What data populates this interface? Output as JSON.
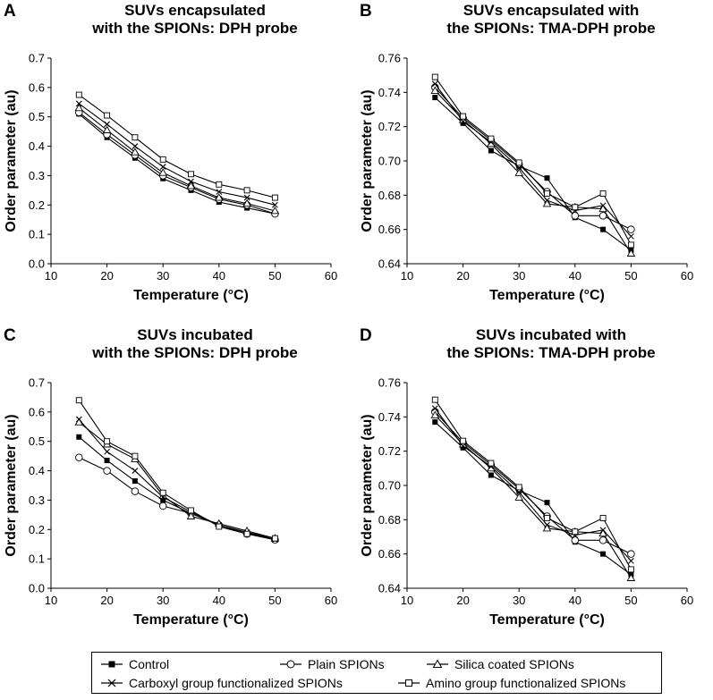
{
  "colors": {
    "axis": "#000000",
    "line": "#000000",
    "marker_fill_open": "#ffffff",
    "marker_fill_solid": "#000000"
  },
  "legend": {
    "items": [
      {
        "label": "Control",
        "marker": "square-filled-icon"
      },
      {
        "label": "Plain SPIONs",
        "marker": "circle-open-icon"
      },
      {
        "label": "Silica coated SPIONs",
        "marker": "triangle-open-icon"
      },
      {
        "label": "Carboxyl group functionalized SPIONs",
        "marker": "cross-icon"
      },
      {
        "label": "Amino group functionalized SPIONs",
        "marker": "square-open-icon"
      }
    ]
  },
  "chart_data": [
    {
      "type": "line",
      "panel": "A",
      "title_lines": [
        "SUVs encapsulated",
        "with the SPIONs: DPH probe"
      ],
      "xlabel": "Temperature (°C)",
      "ylabel": "Order parameter (au)",
      "xlim": [
        10,
        60
      ],
      "ylim": [
        0,
        0.7
      ],
      "xticks": [
        10,
        20,
        30,
        40,
        50,
        60
      ],
      "yticks": [
        0,
        0.1,
        0.2,
        0.3,
        0.4,
        0.5,
        0.6,
        0.7
      ],
      "ytick_labels": [
        "0.0",
        "0.1",
        "0.2",
        "0.3",
        "0.4",
        "0.5",
        "0.6",
        "0.7"
      ],
      "x": [
        15,
        20,
        25,
        30,
        35,
        40,
        45,
        50
      ],
      "series": [
        {
          "name": "Control",
          "values": [
            0.51,
            0.43,
            0.36,
            0.29,
            0.25,
            0.21,
            0.19,
            0.17
          ]
        },
        {
          "name": "Plain SPIONs",
          "values": [
            0.515,
            0.44,
            0.37,
            0.3,
            0.26,
            0.22,
            0.2,
            0.17
          ]
        },
        {
          "name": "Silica coated SPIONs",
          "values": [
            0.53,
            0.455,
            0.38,
            0.31,
            0.265,
            0.225,
            0.205,
            0.18
          ]
        },
        {
          "name": "Carboxyl group functionalized SPIONs",
          "values": [
            0.545,
            0.475,
            0.4,
            0.33,
            0.28,
            0.245,
            0.225,
            0.2
          ]
        },
        {
          "name": "Amino group functionalized SPIONs",
          "values": [
            0.575,
            0.505,
            0.43,
            0.355,
            0.305,
            0.27,
            0.25,
            0.225
          ]
        }
      ]
    },
    {
      "type": "line",
      "panel": "B",
      "title_lines": [
        "SUVs encapsulated with",
        "the SPIONs: TMA-DPH probe"
      ],
      "xlabel": "Temperature (°C)",
      "ylabel": "Order parameter (au)",
      "xlim": [
        10,
        60
      ],
      "ylim": [
        0.64,
        0.76
      ],
      "xticks": [
        10,
        20,
        30,
        40,
        50,
        60
      ],
      "yticks": [
        0.64,
        0.66,
        0.68,
        0.7,
        0.72,
        0.74,
        0.76
      ],
      "ytick_labels": [
        "0.64",
        "0.66",
        "0.68",
        "0.70",
        "0.72",
        "0.74",
        "0.76"
      ],
      "x": [
        15,
        20,
        25,
        30,
        35,
        40,
        45,
        50
      ],
      "series": [
        {
          "name": "Control",
          "values": [
            0.737,
            0.722,
            0.706,
            0.697,
            0.69,
            0.667,
            0.66,
            0.648
          ]
        },
        {
          "name": "Plain SPIONs",
          "values": [
            0.743,
            0.725,
            0.712,
            0.698,
            0.682,
            0.668,
            0.668,
            0.66
          ]
        },
        {
          "name": "Silica coated SPIONs",
          "values": [
            0.741,
            0.724,
            0.71,
            0.693,
            0.675,
            0.673,
            0.672,
            0.646
          ]
        },
        {
          "name": "Carboxyl group functionalized SPIONs",
          "values": [
            0.745,
            0.723,
            0.711,
            0.696,
            0.677,
            0.671,
            0.674,
            0.656
          ]
        },
        {
          "name": "Amino group functionalized SPIONs",
          "values": [
            0.749,
            0.726,
            0.713,
            0.699,
            0.681,
            0.673,
            0.681,
            0.651
          ]
        }
      ]
    },
    {
      "type": "line",
      "panel": "C",
      "title_lines": [
        "SUVs incubated",
        "with the SPIONs: DPH probe"
      ],
      "xlabel": "Temperature (°C)",
      "ylabel": "Order parameter (au)",
      "xlim": [
        10,
        60
      ],
      "ylim": [
        0,
        0.7
      ],
      "xticks": [
        10,
        20,
        30,
        40,
        50,
        60
      ],
      "yticks": [
        0,
        0.1,
        0.2,
        0.3,
        0.4,
        0.5,
        0.6,
        0.7
      ],
      "ytick_labels": [
        "0.0",
        "0.1",
        "0.2",
        "0.3",
        "0.4",
        "0.5",
        "0.6",
        "0.7"
      ],
      "x": [
        15,
        20,
        25,
        30,
        35,
        40,
        45,
        50
      ],
      "series": [
        {
          "name": "Control",
          "values": [
            0.515,
            0.435,
            0.365,
            0.3,
            0.255,
            0.215,
            0.19,
            0.17
          ]
        },
        {
          "name": "Plain SPIONs",
          "values": [
            0.445,
            0.4,
            0.33,
            0.28,
            0.255,
            0.215,
            0.185,
            0.165
          ]
        },
        {
          "name": "Silica coated SPIONs",
          "values": [
            0.565,
            0.49,
            0.44,
            0.315,
            0.245,
            0.22,
            0.195,
            0.17
          ]
        },
        {
          "name": "Carboxyl group functionalized SPIONs",
          "values": [
            0.575,
            0.465,
            0.4,
            0.31,
            0.26,
            0.215,
            0.19,
            0.165
          ]
        },
        {
          "name": "Amino group functionalized SPIONs",
          "values": [
            0.64,
            0.5,
            0.45,
            0.325,
            0.265,
            0.21,
            0.185,
            0.17
          ]
        }
      ]
    },
    {
      "type": "line",
      "panel": "D",
      "title_lines": [
        "SUVs incubated with",
        "the SPIONs: TMA-DPH probe"
      ],
      "xlabel": "Temperature (°C)",
      "ylabel": "Order parameter (au)",
      "xlim": [
        10,
        60
      ],
      "ylim": [
        0.64,
        0.76
      ],
      "xticks": [
        10,
        20,
        30,
        40,
        50,
        60
      ],
      "yticks": [
        0.64,
        0.66,
        0.68,
        0.7,
        0.72,
        0.74,
        0.76
      ],
      "ytick_labels": [
        "0.64",
        "0.66",
        "0.68",
        "0.70",
        "0.72",
        "0.74",
        "0.76"
      ],
      "x": [
        15,
        20,
        25,
        30,
        35,
        40,
        45,
        50
      ],
      "series": [
        {
          "name": "Control",
          "values": [
            0.737,
            0.722,
            0.706,
            0.697,
            0.69,
            0.667,
            0.66,
            0.648
          ]
        },
        {
          "name": "Plain SPIONs",
          "values": [
            0.743,
            0.725,
            0.712,
            0.698,
            0.682,
            0.668,
            0.668,
            0.66
          ]
        },
        {
          "name": "Silica coated SPIONs",
          "values": [
            0.741,
            0.724,
            0.71,
            0.693,
            0.675,
            0.673,
            0.672,
            0.646
          ]
        },
        {
          "name": "Carboxyl group functionalized SPIONs",
          "values": [
            0.745,
            0.723,
            0.711,
            0.696,
            0.677,
            0.671,
            0.674,
            0.656
          ]
        },
        {
          "name": "Amino group functionalized SPIONs",
          "values": [
            0.75,
            0.726,
            0.713,
            0.699,
            0.681,
            0.673,
            0.681,
            0.651
          ]
        }
      ]
    }
  ]
}
